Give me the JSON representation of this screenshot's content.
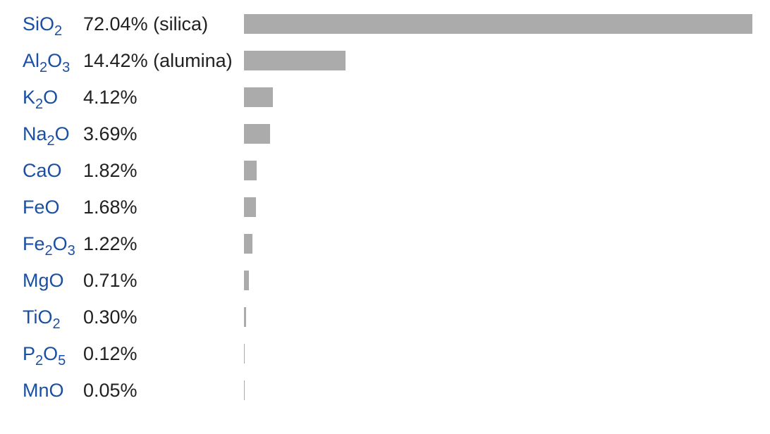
{
  "chart_data": {
    "type": "bar",
    "orientation": "horizontal",
    "categories": [
      "SiO2",
      "Al2O3",
      "K2O",
      "Na2O",
      "CaO",
      "FeO",
      "Fe2O3",
      "MgO",
      "TiO2",
      "P2O5",
      "MnO"
    ],
    "labels": [
      {
        "base": "SiO",
        "parts": [
          [
            "SiO",
            ""
          ],
          [
            "",
            "2"
          ]
        ]
      },
      {
        "base": "Al2O3",
        "parts": [
          [
            "Al",
            "2"
          ],
          [
            "O",
            "3"
          ]
        ]
      },
      {
        "base": "K2O",
        "parts": [
          [
            "K",
            "2"
          ],
          [
            "O",
            ""
          ]
        ]
      },
      {
        "base": "Na2O",
        "parts": [
          [
            "Na",
            "2"
          ],
          [
            "O",
            ""
          ]
        ]
      },
      {
        "base": "CaO",
        "parts": [
          [
            "CaO",
            ""
          ]
        ]
      },
      {
        "base": "FeO",
        "parts": [
          [
            "FeO",
            ""
          ]
        ]
      },
      {
        "base": "Fe2O3",
        "parts": [
          [
            "Fe",
            "2"
          ],
          [
            "O",
            "3"
          ]
        ]
      },
      {
        "base": "MgO",
        "parts": [
          [
            "MgO",
            ""
          ]
        ]
      },
      {
        "base": "TiO2",
        "parts": [
          [
            "TiO",
            "2"
          ]
        ]
      },
      {
        "base": "P2O5",
        "parts": [
          [
            "P",
            "2"
          ],
          [
            "O",
            "5"
          ]
        ]
      },
      {
        "base": "MnO",
        "parts": [
          [
            "MnO",
            ""
          ]
        ]
      }
    ],
    "values": [
      72.04,
      14.42,
      4.12,
      3.69,
      1.82,
      1.68,
      1.22,
      0.71,
      0.3,
      0.12,
      0.05
    ],
    "value_labels": [
      "72.04% (silica)",
      "14.42% (alumina)",
      "4.12%",
      "3.69%",
      "1.82%",
      "1.68%",
      "1.22%",
      "0.71%",
      "0.30%",
      "0.12%",
      "0.05%"
    ],
    "xlim": [
      0,
      72.04
    ],
    "bar_color": "#ababab",
    "label_color": "#1a4fa3",
    "text_color": "#202122",
    "grid": false,
    "legend": "none"
  }
}
